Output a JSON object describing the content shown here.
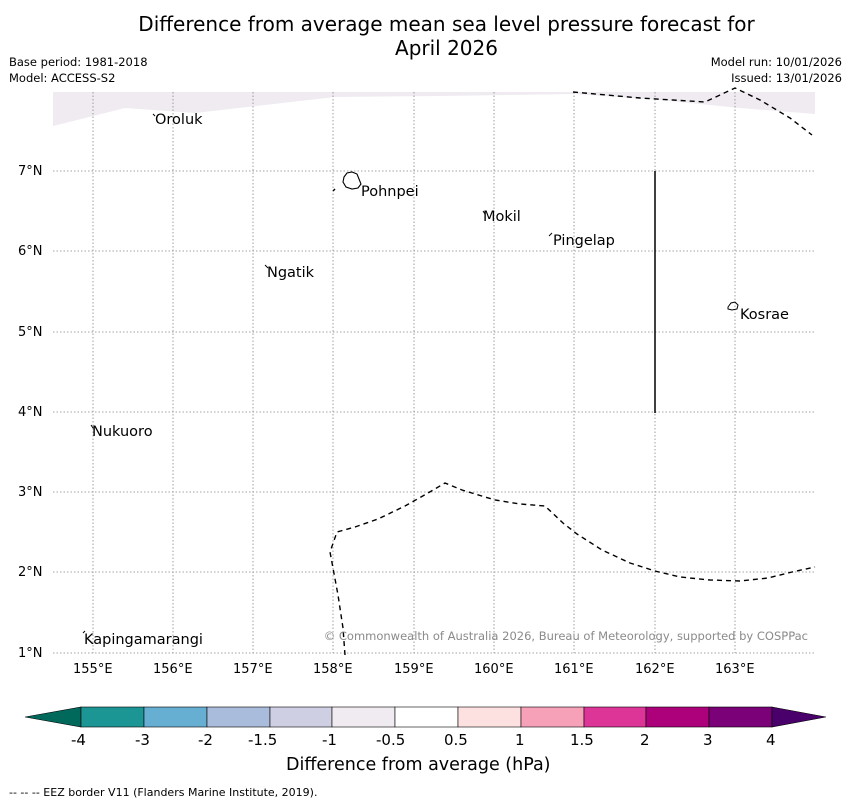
{
  "title_line1": "Difference from average mean sea level pressure forecast for",
  "title_line2": "April 2026",
  "meta": {
    "base_period": "Base period: 1981-2018",
    "model": "Model: ACCESS-S2",
    "model_run": "Model run: 10/01/2026",
    "issued": "Issued: 13/01/2026"
  },
  "axes": {
    "lat_labels": [
      "7°N",
      "6°N",
      "5°N",
      "4°N",
      "3°N",
      "2°N",
      "1°N"
    ],
    "lon_labels": [
      "155°E",
      "156°E",
      "157°E",
      "158°E",
      "159°E",
      "160°E",
      "161°E",
      "162°E",
      "163°E"
    ]
  },
  "places": {
    "oroluk": "Oroluk",
    "pohnpei": "Pohnpei",
    "mokil": "Mokil",
    "pingelap": "Pingelap",
    "ngatik": "Ngatik",
    "kosrae": "Kosrae",
    "nukuoro": "Nukuoro",
    "kapingamarangi": "Kapingamarangi"
  },
  "copyright": "© Commonwealth of Australia 2026, Bureau of Meteorology, supported by COSPPac",
  "colorbar": {
    "title": "Difference from average (hPa)",
    "ticks": [
      "-4",
      "-3",
      "-2",
      "-1.5",
      "-1",
      "-0.5",
      "0.5",
      "1",
      "1.5",
      "2",
      "3",
      "4"
    ],
    "colors": {
      "low_ext": "#00695c",
      "b1": "#1c9595",
      "b2": "#66aed2",
      "b3": "#a9bcdb",
      "b4": "#cfcfe4",
      "b5": "#efebf1",
      "b6": "#ffffff",
      "b7": "#fde0e0",
      "b8": "#f7a1b9",
      "b9": "#dd3597",
      "b10": "#ad017c",
      "b11": "#7a0177",
      "high_ext": "#4a006a"
    }
  },
  "footer": "--  --  -- EEZ border V11 (Flanders Marine Institute, 2019)."
}
